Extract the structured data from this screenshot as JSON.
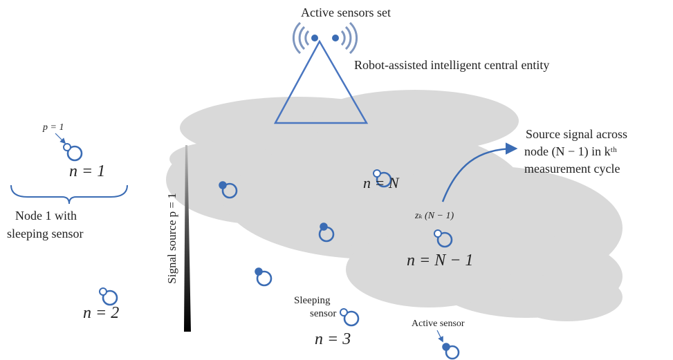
{
  "header": {
    "title": "Active sensors set",
    "entity": "Robot-assisted intelligent central entity"
  },
  "labels": {
    "p_one": "p = 1",
    "n_one": "n = 1",
    "node_one_note": [
      "Node 1 with",
      "sleeping sensor"
    ],
    "signal_source": "Signal source p = 1",
    "n_N": "n = N",
    "source_signal_note": [
      "Source signal across",
      "node (N − 1) in kᵗʰ",
      "measurement cycle"
    ],
    "z_k": "zₖ (N − 1)",
    "n_N_minus_1": "n = N − 1",
    "n_two": "n = 2",
    "sleeping_sensor": [
      "Sleeping",
      "sensor"
    ],
    "n_three": "n = 3",
    "active_sensor": "Active sensor"
  }
}
